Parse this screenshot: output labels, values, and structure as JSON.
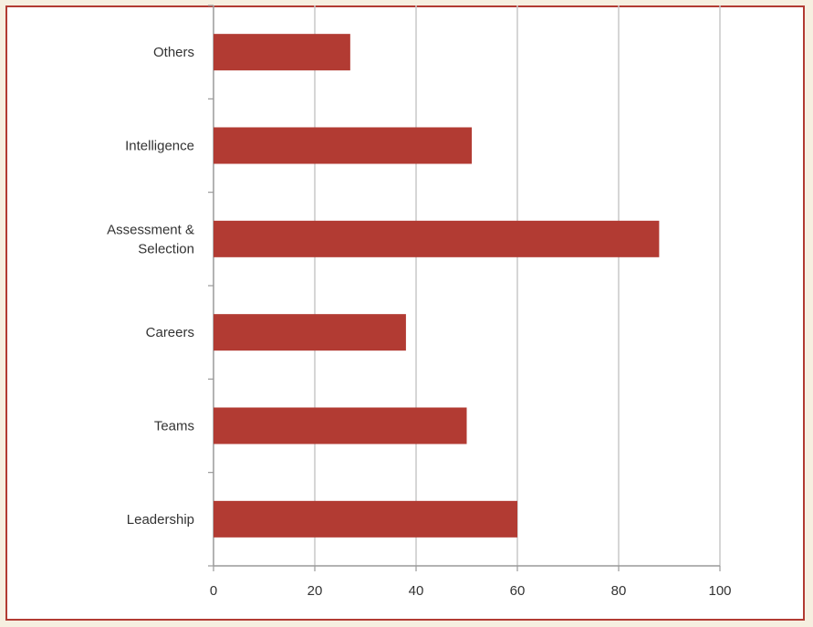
{
  "chart_data": {
    "type": "bar",
    "orientation": "horizontal",
    "categories": [
      "Others",
      "Intelligence",
      "Assessment & Selection",
      "Careers",
      "Teams",
      "Leadership"
    ],
    "category_lines": [
      [
        "Others"
      ],
      [
        "Intelligence"
      ],
      [
        "Assessment &",
        "Selection"
      ],
      [
        "Careers"
      ],
      [
        "Teams"
      ],
      [
        "Leadership"
      ]
    ],
    "values": [
      27,
      51,
      88,
      38,
      50,
      60
    ],
    "xlim": [
      0,
      100
    ],
    "xticks": [
      0,
      20,
      40,
      60,
      80,
      100
    ],
    "xtick_labels": [
      "0",
      "20",
      "40",
      "60",
      "80",
      "100"
    ],
    "grid": "vertical",
    "bar_color": "#b23b33",
    "frame_color": "#b23b33",
    "background_color": "#f6efe0"
  }
}
